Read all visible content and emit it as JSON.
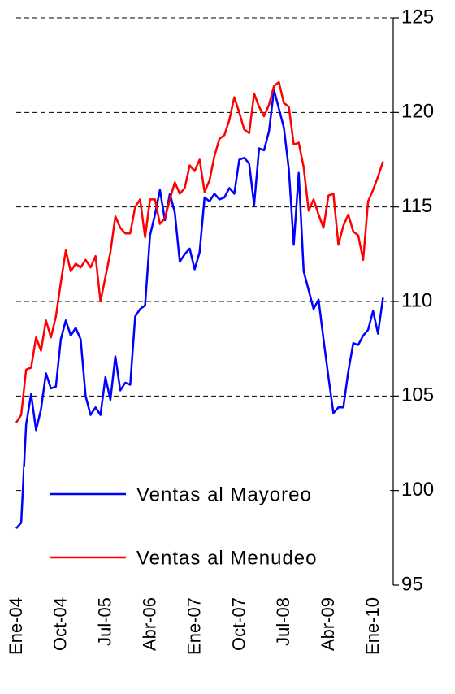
{
  "chart_data": {
    "type": "line",
    "categories": [
      "Ene-04",
      null,
      null,
      null,
      null,
      null,
      null,
      null,
      null,
      "Oct-04",
      null,
      null,
      null,
      null,
      null,
      null,
      null,
      null,
      "Jul-05",
      null,
      null,
      null,
      null,
      null,
      null,
      null,
      null,
      "Abr-06",
      null,
      null,
      null,
      null,
      null,
      null,
      null,
      null,
      "Ene-07",
      null,
      null,
      null,
      null,
      null,
      null,
      null,
      null,
      "Oct-07",
      null,
      null,
      null,
      null,
      null,
      null,
      null,
      null,
      "Jul-08",
      null,
      null,
      null,
      null,
      null,
      null,
      null,
      null,
      "Abr-09",
      null,
      null,
      null,
      null,
      null,
      null,
      null,
      null,
      "Ene-10",
      null,
      null
    ],
    "series": [
      {
        "name": "Ventas al Mayoreo",
        "color": "#0000ff",
        "values": [
          98.0,
          98.3,
          103.5,
          105.1,
          103.2,
          104.3,
          106.2,
          105.4,
          105.5,
          108.0,
          109.0,
          108.2,
          108.6,
          108.0,
          105.0,
          104.0,
          104.4,
          104.0,
          106.0,
          104.8,
          107.1,
          105.3,
          105.7,
          105.6,
          109.2,
          109.6,
          109.8,
          113.5,
          114.6,
          115.9,
          114.3,
          115.7,
          114.7,
          112.1,
          112.5,
          112.8,
          111.7,
          112.6,
          115.5,
          115.3,
          115.7,
          115.4,
          115.5,
          116.0,
          115.7,
          117.5,
          117.6,
          117.3,
          115.1,
          118.1,
          118.0,
          119.0,
          121.2,
          120.2,
          119.2,
          117.0,
          113.0,
          116.8,
          111.6,
          110.6,
          109.6,
          110.1,
          108.0,
          106.0,
          104.1,
          104.4,
          104.4,
          106.3,
          107.8,
          107.7,
          108.2,
          108.5,
          109.5,
          108.3,
          110.2
        ]
      },
      {
        "name": "Ventas al Menudeo",
        "color": "#ff0000",
        "values": [
          103.6,
          104.0,
          106.4,
          106.5,
          108.1,
          107.4,
          109.0,
          108.1,
          109.2,
          111.0,
          112.7,
          111.6,
          112.0,
          111.8,
          112.2,
          111.8,
          112.4,
          110.0,
          111.3,
          112.6,
          114.5,
          113.9,
          113.6,
          113.6,
          115.0,
          115.4,
          113.4,
          115.4,
          115.4,
          114.1,
          114.4,
          115.4,
          116.3,
          115.7,
          116.0,
          117.2,
          116.9,
          117.5,
          115.8,
          116.4,
          117.7,
          118.6,
          118.8,
          119.6,
          120.8,
          120.0,
          119.1,
          118.9,
          121.0,
          120.3,
          119.8,
          120.4,
          121.4,
          121.6,
          120.5,
          120.3,
          118.3,
          118.4,
          117.1,
          114.8,
          115.4,
          114.6,
          113.9,
          115.6,
          115.7,
          113.0,
          114.0,
          114.6,
          113.7,
          113.5,
          112.2,
          115.3,
          115.9,
          116.6,
          117.4
        ]
      }
    ],
    "ylim": [
      95,
      125
    ],
    "yticks": [
      95,
      100,
      105,
      110,
      115,
      120,
      125
    ],
    "grid": true,
    "legend": "lower left"
  }
}
